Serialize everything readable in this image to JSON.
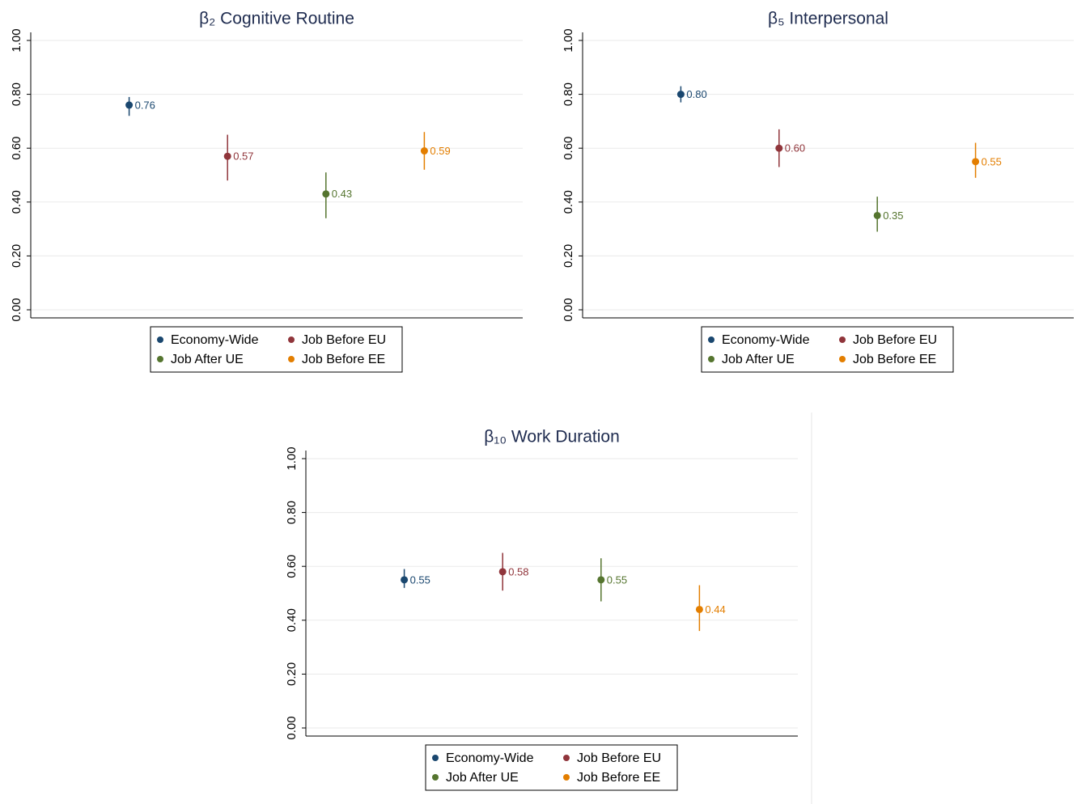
{
  "chart_data": [
    {
      "type": "dot",
      "title": "β₂ Cognitive Routine",
      "ylim": [
        -0.03,
        1.03
      ],
      "yticks": [
        {
          "value": 0,
          "label": "0.00"
        },
        {
          "value": 0.2,
          "label": "0.20"
        },
        {
          "value": 0.4,
          "label": "0.40"
        },
        {
          "value": 0.6,
          "label": "0.60"
        },
        {
          "value": 0.8,
          "label": "0.80"
        },
        {
          "value": 1,
          "label": "1.00"
        }
      ],
      "grid": true,
      "legend": "bottom",
      "series": [
        {
          "name": "Economy-Wide",
          "color": "#1a476f",
          "values": [
            0.76
          ],
          "value_labels": [
            "0.76"
          ],
          "lower": [
            0.72
          ],
          "upper": [
            0.79
          ]
        },
        {
          "name": "Job Before EU",
          "color": "#90353b",
          "values": [
            0.57
          ],
          "value_labels": [
            "0.57"
          ],
          "lower": [
            0.48
          ],
          "upper": [
            0.65
          ]
        },
        {
          "name": "Job After UE",
          "color": "#55752f",
          "values": [
            0.43
          ],
          "value_labels": [
            "0.43"
          ],
          "lower": [
            0.34
          ],
          "upper": [
            0.51
          ]
        },
        {
          "name": "Job Before EE",
          "color": "#e37e00",
          "values": [
            0.59
          ],
          "value_labels": [
            "0.59"
          ],
          "lower": [
            0.52
          ],
          "upper": [
            0.66
          ]
        }
      ]
    },
    {
      "type": "dot",
      "title": "β₅ Interpersonal",
      "ylim": [
        -0.03,
        1.03
      ],
      "yticks": [
        {
          "value": 0,
          "label": "0.00"
        },
        {
          "value": 0.2,
          "label": "0.20"
        },
        {
          "value": 0.4,
          "label": "0.40"
        },
        {
          "value": 0.6,
          "label": "0.60"
        },
        {
          "value": 0.8,
          "label": "0.80"
        },
        {
          "value": 1,
          "label": "1.00"
        }
      ],
      "grid": true,
      "legend": "bottom",
      "series": [
        {
          "name": "Economy-Wide",
          "color": "#1a476f",
          "values": [
            0.8
          ],
          "value_labels": [
            "0.80"
          ],
          "lower": [
            0.77
          ],
          "upper": [
            0.83
          ]
        },
        {
          "name": "Job Before EU",
          "color": "#90353b",
          "values": [
            0.6
          ],
          "value_labels": [
            "0.60"
          ],
          "lower": [
            0.53
          ],
          "upper": [
            0.67
          ]
        },
        {
          "name": "Job After UE",
          "color": "#55752f",
          "values": [
            0.35
          ],
          "value_labels": [
            "0.35"
          ],
          "lower": [
            0.29
          ],
          "upper": [
            0.42
          ]
        },
        {
          "name": "Job Before EE",
          "color": "#e37e00",
          "values": [
            0.55
          ],
          "value_labels": [
            "0.55"
          ],
          "lower": [
            0.49
          ],
          "upper": [
            0.62
          ]
        }
      ]
    },
    {
      "type": "dot",
      "title": "β₁₀ Work Duration",
      "ylim": [
        -0.03,
        1.03
      ],
      "yticks": [
        {
          "value": 0,
          "label": "0.00"
        },
        {
          "value": 0.2,
          "label": "0.20"
        },
        {
          "value": 0.4,
          "label": "0.40"
        },
        {
          "value": 0.6,
          "label": "0.60"
        },
        {
          "value": 0.8,
          "label": "0.80"
        },
        {
          "value": 1,
          "label": "1.00"
        }
      ],
      "grid": true,
      "legend": "bottom",
      "series": [
        {
          "name": "Economy-Wide",
          "color": "#1a476f",
          "values": [
            0.55
          ],
          "value_labels": [
            "0.55"
          ],
          "lower": [
            0.52
          ],
          "upper": [
            0.59
          ]
        },
        {
          "name": "Job Before EU",
          "color": "#90353b",
          "values": [
            0.58
          ],
          "value_labels": [
            "0.58"
          ],
          "lower": [
            0.51
          ],
          "upper": [
            0.65
          ]
        },
        {
          "name": "Job After UE",
          "color": "#55752f",
          "values": [
            0.55
          ],
          "value_labels": [
            "0.55"
          ],
          "lower": [
            0.47
          ],
          "upper": [
            0.63
          ]
        },
        {
          "name": "Job Before EE",
          "color": "#e37e00",
          "values": [
            0.44
          ],
          "value_labels": [
            "0.44"
          ],
          "lower": [
            0.36
          ],
          "upper": [
            0.53
          ]
        }
      ]
    }
  ]
}
